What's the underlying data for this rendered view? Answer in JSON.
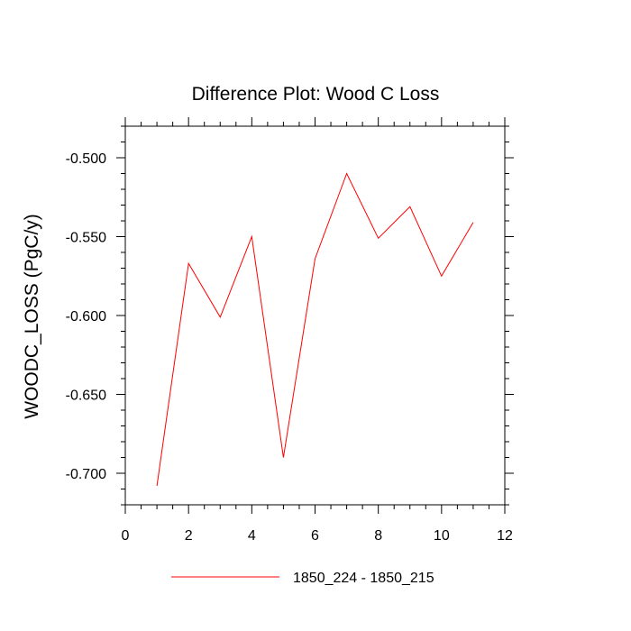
{
  "chart_data": {
    "type": "line",
    "title": "Difference Plot: Wood C Loss",
    "xlabel": "",
    "ylabel": "WOODC_LOSS  (PgC/y)",
    "xlim": [
      0,
      12
    ],
    "ylim": [
      -0.72,
      -0.48
    ],
    "x_ticks": [
      0,
      2,
      4,
      6,
      8,
      10,
      12
    ],
    "x_tick_labels": [
      "0",
      "2",
      "4",
      "6",
      "8",
      "10",
      "12"
    ],
    "y_ticks": [
      -0.7,
      -0.65,
      -0.6,
      -0.55,
      -0.5
    ],
    "y_tick_labels": [
      "-0.700",
      "-0.650",
      "-0.600",
      "-0.550",
      "-0.500"
    ],
    "grid": false,
    "legend_position": "bottom",
    "series": [
      {
        "name": "1850_224 - 1850_215",
        "color": "#ff0000",
        "x": [
          1,
          2,
          3,
          4,
          5,
          6,
          7,
          8,
          9,
          10,
          11
        ],
        "y": [
          -0.708,
          -0.567,
          -0.601,
          -0.55,
          -0.69,
          -0.564,
          -0.51,
          -0.551,
          -0.531,
          -0.575,
          -0.541
        ]
      }
    ]
  }
}
